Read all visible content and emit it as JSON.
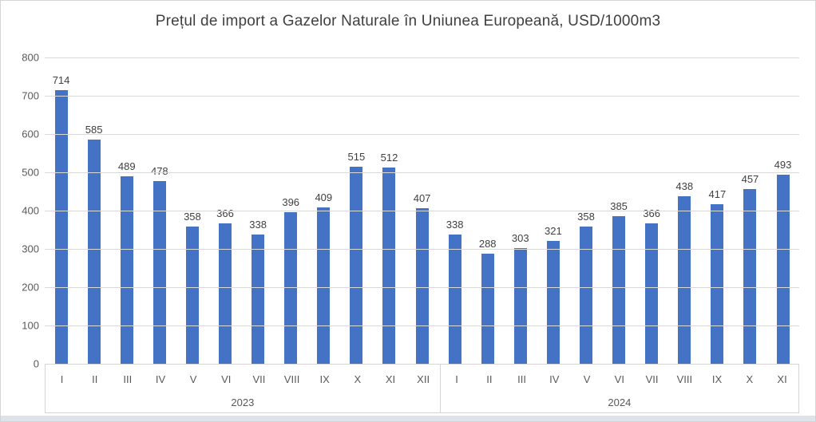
{
  "chart_data": {
    "type": "bar",
    "title": "Prețul de import a Gazelor Naturale în Uniunea Europeană, USD/1000m3",
    "xlabel": "",
    "ylabel": "",
    "ylim": [
      0,
      800
    ],
    "yticks": [
      0,
      100,
      200,
      300,
      400,
      500,
      600,
      700,
      800
    ],
    "grid": true,
    "legend": false,
    "data_labels": true,
    "groups": [
      {
        "year": "2023",
        "categories": [
          "I",
          "II",
          "III",
          "IV",
          "V",
          "VI",
          "VII",
          "VIII",
          "IX",
          "X",
          "XI",
          "XII"
        ],
        "values": [
          714,
          585,
          489,
          478,
          358,
          366,
          338,
          396,
          409,
          515,
          512,
          407
        ]
      },
      {
        "year": "2024",
        "categories": [
          "I",
          "II",
          "III",
          "IV",
          "V",
          "VI",
          "VII",
          "VIII",
          "IX",
          "X",
          "XI"
        ],
        "values": [
          338,
          288,
          303,
          321,
          358,
          385,
          366,
          438,
          417,
          457,
          493
        ]
      }
    ]
  },
  "colors": {
    "bar": "#4472C4",
    "gridline": "#D9D9D9",
    "axis_text": "#595959",
    "title_text": "#404040",
    "data_label_text": "#404040",
    "axis_border": "#D4D4D4",
    "bottom_strip": "#DDE3EB"
  }
}
